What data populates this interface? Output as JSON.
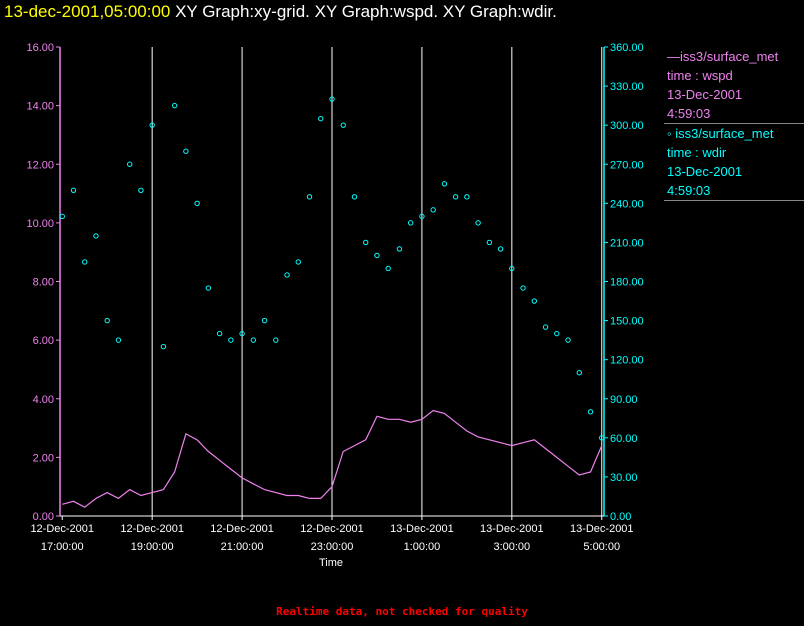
{
  "header": {
    "date_time": "13-dec-2001,05:00:00",
    "graphs_text": "XY Graph:xy-grid.  XY Graph:wspd.  XY Graph:wdir."
  },
  "legend": {
    "entries": [
      {
        "lines": [
          "—iss3/surface_met",
          "time : wspd",
          "13-Dec-2001",
          "4:59:03"
        ],
        "color": "#ee82ee"
      },
      {
        "lines": [
          "◦ iss3/surface_met",
          "time : wdir",
          "13-Dec-2001",
          "4:59:03"
        ],
        "color": "#00ffff"
      }
    ]
  },
  "footer": {
    "note": "Realtime data, not checked for quality"
  },
  "chart_data": {
    "type": "line",
    "xlabel": "Time",
    "x_ticks": [
      {
        "top": "12-Dec-2001",
        "bottom": "17:00:00"
      },
      {
        "top": "12-Dec-2001",
        "bottom": "19:00:00"
      },
      {
        "top": "12-Dec-2001",
        "bottom": "21:00:00"
      },
      {
        "top": "12-Dec-2001",
        "bottom": "23:00:00"
      },
      {
        "top": "13-Dec-2001",
        "bottom": "1:00:00"
      },
      {
        "top": "13-Dec-2001",
        "bottom": "3:00:00"
      },
      {
        "top": "13-Dec-2001",
        "bottom": "5:00:00"
      }
    ],
    "x_range_hours": [
      -0.05,
      12.05
    ],
    "grid_vertical": true,
    "left_axis": {
      "color": "#ee82ee",
      "ylim": [
        0,
        16
      ],
      "ticks": [
        "0.00",
        "2.00",
        "4.00",
        "6.00",
        "8.00",
        "10.00",
        "12.00",
        "14.00",
        "16.00"
      ]
    },
    "right_axis": {
      "color": "#00ffff",
      "ylim": [
        0,
        360
      ],
      "ticks": [
        "0.00",
        "30.00",
        "60.00",
        "90.00",
        "120.00",
        "150.00",
        "180.00",
        "210.00",
        "240.00",
        "270.00",
        "300.00",
        "330.00",
        "360.00"
      ]
    },
    "series": [
      {
        "name": "iss3/surface_met time : wspd",
        "axis": "left",
        "style": "line",
        "color": "#ee82ee",
        "x": [
          0,
          0.25,
          0.5,
          0.75,
          1,
          1.25,
          1.5,
          1.75,
          2,
          2.25,
          2.5,
          2.75,
          3,
          3.25,
          3.5,
          3.75,
          4,
          4.25,
          4.5,
          4.75,
          5,
          5.25,
          5.5,
          5.75,
          6,
          6.25,
          6.5,
          6.75,
          7,
          7.25,
          7.5,
          7.75,
          8,
          8.25,
          8.5,
          8.75,
          9,
          9.25,
          9.5,
          9.75,
          10,
          10.25,
          10.5,
          10.75,
          11,
          11.25,
          11.5,
          11.75,
          12
        ],
        "y": [
          0.4,
          0.5,
          0.3,
          0.6,
          0.8,
          0.6,
          0.9,
          0.7,
          0.8,
          0.9,
          1.5,
          2.8,
          2.6,
          2.2,
          1.9,
          1.6,
          1.3,
          1.1,
          0.9,
          0.8,
          0.7,
          0.7,
          0.6,
          0.6,
          1.0,
          2.2,
          2.4,
          2.6,
          3.4,
          3.3,
          3.3,
          3.2,
          3.3,
          3.6,
          3.5,
          3.2,
          2.9,
          2.7,
          2.6,
          2.5,
          2.4,
          2.5,
          2.6,
          2.3,
          2.0,
          1.7,
          1.4,
          1.5,
          2.4
        ]
      },
      {
        "name": "iss3/surface_met time : wdir",
        "axis": "right",
        "style": "points",
        "color": "#00ffff",
        "x": [
          0,
          0.25,
          0.5,
          0.75,
          1,
          1.25,
          1.5,
          1.75,
          2,
          2.25,
          2.5,
          2.75,
          3,
          3.25,
          3.5,
          3.75,
          4,
          4.25,
          4.5,
          4.75,
          5,
          5.25,
          5.5,
          5.75,
          6,
          6.25,
          6.5,
          6.75,
          7,
          7.25,
          7.5,
          7.75,
          8,
          8.25,
          8.5,
          8.75,
          9,
          9.25,
          9.5,
          9.75,
          10,
          10.25,
          10.5,
          10.75,
          11,
          11.25,
          11.5,
          11.75,
          12
        ],
        "y": [
          230,
          250,
          195,
          215,
          150,
          135,
          270,
          250,
          300,
          130,
          315,
          280,
          240,
          175,
          140,
          135,
          140,
          135,
          150,
          135,
          185,
          195,
          245,
          305,
          320,
          300,
          245,
          210,
          200,
          190,
          205,
          225,
          230,
          235,
          255,
          245,
          245,
          225,
          210,
          205,
          190,
          175,
          165,
          145,
          140,
          135,
          110,
          80,
          60
        ]
      }
    ]
  }
}
